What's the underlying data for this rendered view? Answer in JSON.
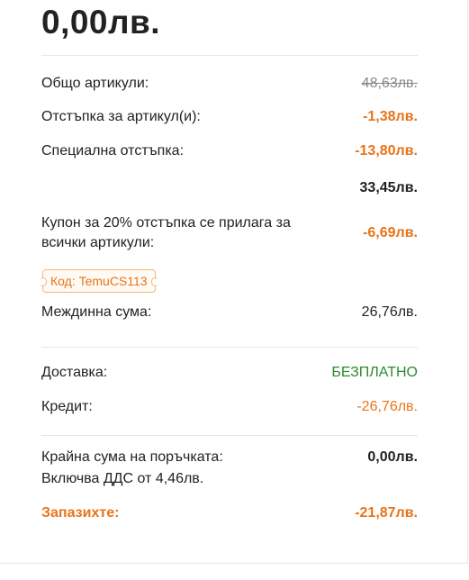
{
  "summary": {
    "big_total": "0,00лв.",
    "rows": {
      "items_total_label": "Общо артикули:",
      "items_total_value": "48,63лв.",
      "item_discount_label": "Отстъпка за артикул(и):",
      "item_discount_value": "-1,38лв.",
      "special_discount_label": "Специална отстъпка:",
      "special_discount_value": "-13,80лв.",
      "after_discounts_value": "33,45лв.",
      "coupon_label": "Купон за 20% отстъпка се прилага за всички артикули:",
      "coupon_value": "-6,69лв.",
      "coupon_code": "Код: TemuCS113",
      "subtotal_label": "Междинна сума:",
      "subtotal_value": "26,76лв.",
      "shipping_label": "Доставка:",
      "shipping_value": "БЕЗПЛАТНО",
      "credit_label": "Кредит:",
      "credit_value": "-26,76лв.",
      "final_label": "Крайна сума на поръчката:",
      "final_value": "0,00лв.",
      "vat_note": "Включва ДДС от 4,46лв.",
      "saved_label": "Запазихте:",
      "saved_value": "-21,87лв."
    }
  },
  "colors": {
    "accent_orange": "#e8741a",
    "free_green": "#2c8a2c",
    "strike_gray": "#888888"
  }
}
